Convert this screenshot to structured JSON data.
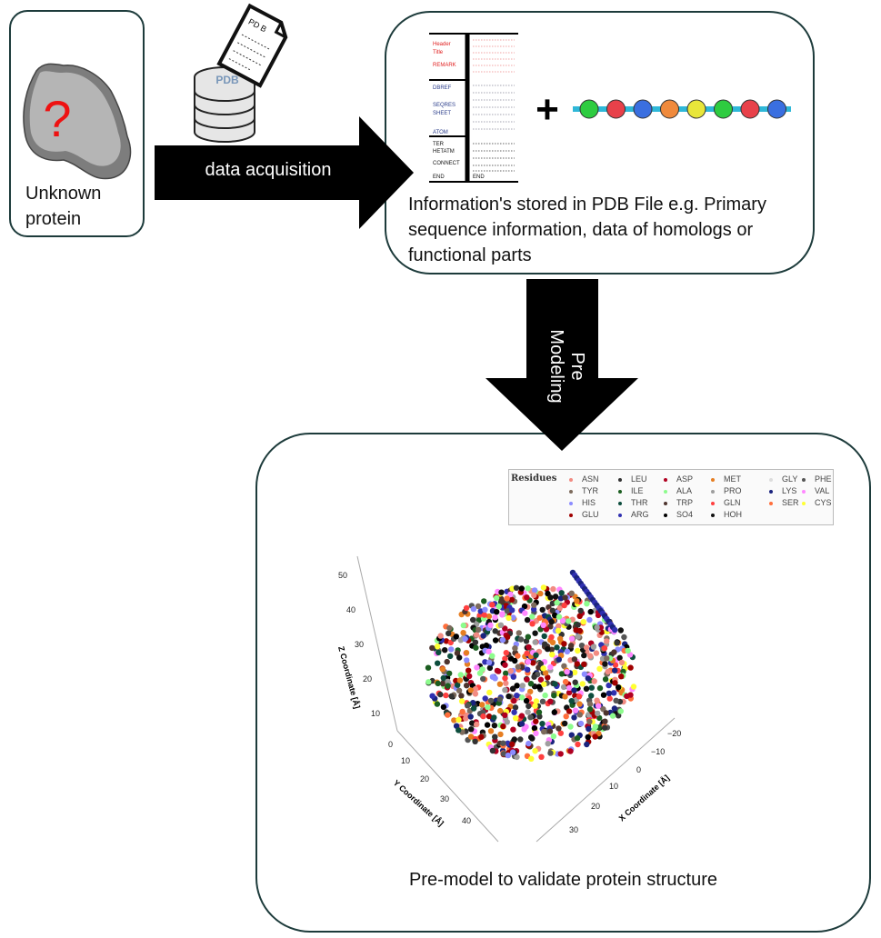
{
  "unknown_box": {
    "label": "Unknown protein",
    "question_mark": "?"
  },
  "pdb_icon": {
    "document_text": "PD B",
    "database_text": "PDB"
  },
  "arrow_acquisition": {
    "label": "data acquisition"
  },
  "pdb_file": {
    "records_left": [
      "Header",
      "Title",
      "REMARK",
      "DBREF",
      "SEQRES",
      "SHEET",
      "ATOM",
      "TER",
      "HETATM",
      "CONNECT",
      "END"
    ],
    "records_right_end": "END",
    "plus": "+",
    "caption": "Information's stored in PDB File e.g. Primary sequence information, data of homologs or functional parts",
    "bead_colors": [
      "#2ecc40",
      "#e8414a",
      "#3a6fe0",
      "#f08a3c",
      "#e8e63a",
      "#2ecc40",
      "#e8414a",
      "#3a6fe0"
    ]
  },
  "arrow_premodeling": {
    "label": "Pre Modeling"
  },
  "premodel": {
    "caption": "Pre-model to validate protein structure",
    "legend_title": "Residues",
    "legend": [
      {
        "name": "ASN",
        "color": "#f28b82"
      },
      {
        "name": "LEU",
        "color": "#333333"
      },
      {
        "name": "ASP",
        "color": "#b00020"
      },
      {
        "name": "MET",
        "color": "#e67e22"
      },
      {
        "name": "GLY",
        "color": "#dddddd"
      },
      {
        "name": "PHE",
        "color": "#555555"
      },
      {
        "name": "TYR",
        "color": "#7d6b5d"
      },
      {
        "name": "ILE",
        "color": "#1b5e20"
      },
      {
        "name": "ALA",
        "color": "#8dfc8d"
      },
      {
        "name": "PRO",
        "color": "#9e9e9e"
      },
      {
        "name": "LYS",
        "color": "#1a237e"
      },
      {
        "name": "VAL",
        "color": "#ff88ff"
      },
      {
        "name": "HIS",
        "color": "#8c8cff"
      },
      {
        "name": "THR",
        "color": "#0d4d3d"
      },
      {
        "name": "TRP",
        "color": "#4e342e"
      },
      {
        "name": "GLN",
        "color": "#ff4040"
      },
      {
        "name": "SER",
        "color": "#ff6f3c"
      },
      {
        "name": "CYS",
        "color": "#ffff33"
      },
      {
        "name": "GLU",
        "color": "#a00000"
      },
      {
        "name": "ARG",
        "color": "#3030b0"
      },
      {
        "name": "SO4",
        "color": "#000000"
      },
      {
        "name": "HOH",
        "color": "#111111"
      }
    ],
    "axes": {
      "z_label": "Z Coordinate [Å]",
      "z_ticks": [
        "50",
        "40",
        "30",
        "20",
        "10",
        "0"
      ],
      "y_label": "Y Coordinate [Å]",
      "y_ticks": [
        "0",
        "10",
        "20",
        "30",
        "40"
      ],
      "x_label": "X Coordinate [Å]",
      "x_ticks": [
        "−20",
        "−10",
        "0",
        "10",
        "20",
        "30"
      ]
    }
  }
}
